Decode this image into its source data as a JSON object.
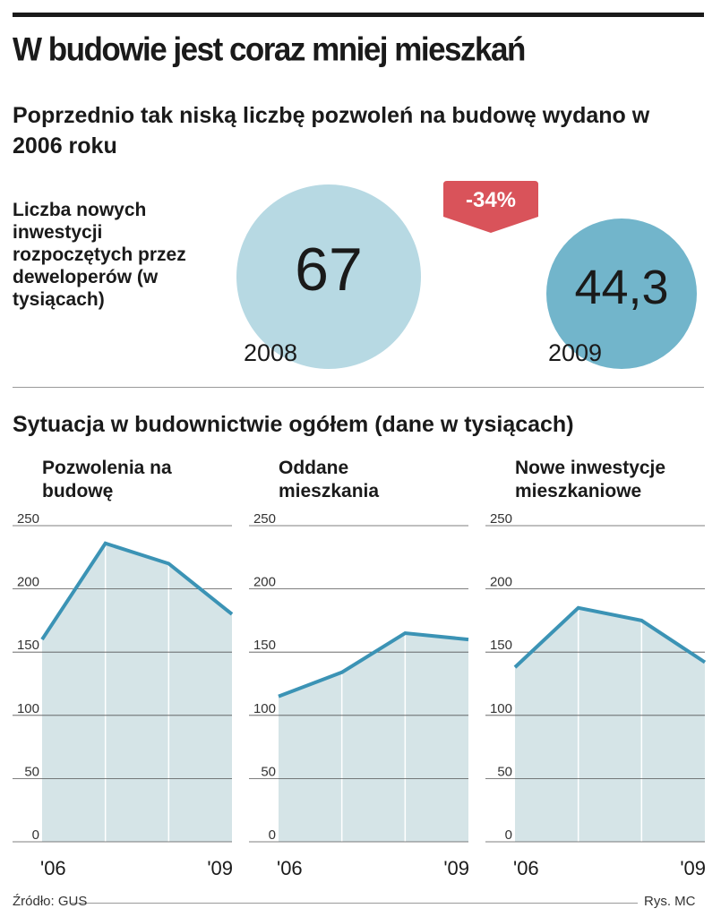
{
  "title": "W budowie jest coraz mniej mieszkań",
  "subtitle": "Poprzednio tak niską liczbę pozwoleń na budowę wydano w 2006 roku",
  "investments": {
    "label": "Liczba nowych inwestycji rozpoczętych przez deweloperów (w tysiącach)",
    "value_2008": "67",
    "year_2008": "2008",
    "value_2009": "44,3",
    "year_2009": "2009",
    "change": "-34%"
  },
  "section_title": "Sytuacja w budownictwie ogółem (dane w tysiącach)",
  "source": "Źródło: GUS",
  "credit": "Rys. MC",
  "colors": {
    "line": "#3b93b5",
    "area": "#d5e4e7",
    "circle_2008": "#b7d9e3",
    "circle_2009": "#72b5cb",
    "badge": "#d9535a"
  },
  "chart_data": [
    {
      "type": "area",
      "title": "Pozwolenia na budowę",
      "x": [
        "2006",
        "2007",
        "2008",
        "2009"
      ],
      "x_tick_labels": [
        "'06",
        "'09"
      ],
      "values": [
        160,
        236,
        220,
        180
      ],
      "ylim": [
        0,
        250
      ],
      "yticks": [
        "0",
        "50",
        "100",
        "150",
        "200",
        "250"
      ]
    },
    {
      "type": "area",
      "title": "Oddane mieszkania",
      "x": [
        "2006",
        "2007",
        "2008",
        "2009"
      ],
      "x_tick_labels": [
        "'06",
        "'09"
      ],
      "values": [
        115,
        134,
        165,
        160
      ],
      "ylim": [
        0,
        250
      ],
      "yticks": [
        "0",
        "50",
        "100",
        "150",
        "200",
        "250"
      ]
    },
    {
      "type": "area",
      "title": "Nowe inwestycje mieszkaniowe",
      "x": [
        "2006",
        "2007",
        "2008",
        "2009"
      ],
      "x_tick_labels": [
        "'06",
        "'09"
      ],
      "values": [
        138,
        185,
        175,
        142
      ],
      "ylim": [
        0,
        250
      ],
      "yticks": [
        "0",
        "50",
        "100",
        "150",
        "200",
        "250"
      ]
    }
  ]
}
